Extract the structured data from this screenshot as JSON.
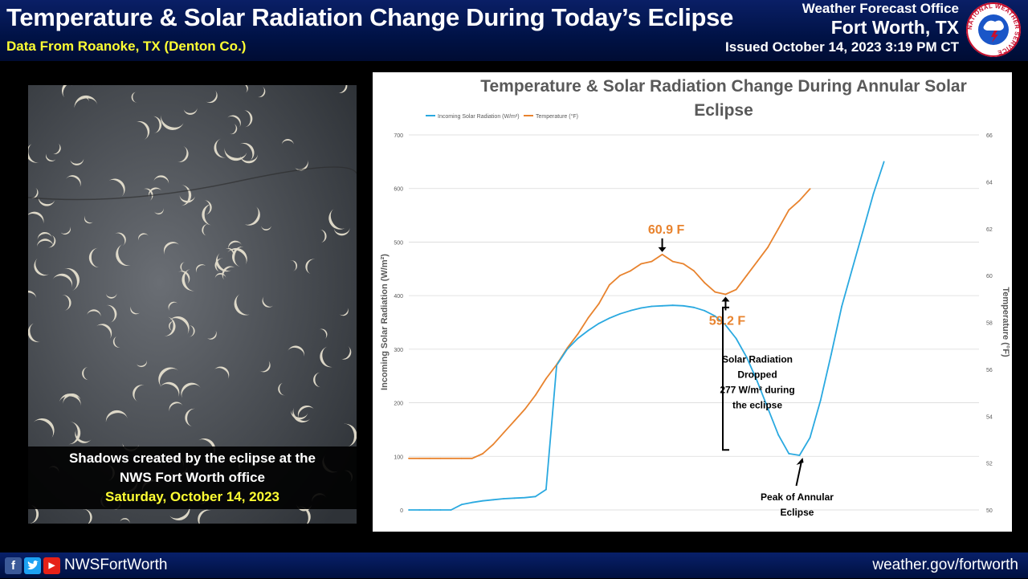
{
  "header": {
    "title": "Temperature & Solar Radiation Change During Today’s Eclipse",
    "subtitle": "Data From Roanoke, TX (Denton Co.)",
    "office_name": "Weather Forecast Office",
    "office_city": "Fort Worth, TX",
    "issued": "Issued October 14, 2023 3:19 PM CT",
    "logo_text": "NATIONAL WEATHER SERVICE"
  },
  "photo": {
    "caption_line1": "Shadows created by the eclipse at the",
    "caption_line2": "NWS Fort Worth office",
    "caption_date": "Saturday, October 14, 2023"
  },
  "footer": {
    "handle": "NWSFortWorth",
    "website": "weather.gov/fortworth"
  },
  "colors": {
    "radiation": "#2aa9e0",
    "temperature": "#e8832e",
    "header_bg": "#001246",
    "highlight": "#ffff33"
  },
  "chart_data": {
    "type": "line",
    "title": "Temperature & Solar Radiation Change During Annular Solar Eclipse",
    "ylabel": "Incoming Solar Radiation (W/m²)",
    "y2label": "Temperature (°F)",
    "ylim": [
      0,
      700
    ],
    "y2lim": [
      50,
      66
    ],
    "yticks": [
      0,
      100,
      200,
      300,
      400,
      500,
      600,
      700
    ],
    "y2ticks": [
      50,
      52,
      54,
      56,
      58,
      60,
      62,
      64,
      66
    ],
    "grid": true,
    "legend_position": "top-left",
    "x": [
      0,
      5,
      10,
      15,
      20,
      25,
      30,
      35,
      40,
      45,
      50,
      55,
      60,
      65,
      70,
      75,
      80,
      85,
      90,
      95,
      100,
      105,
      110,
      115,
      120,
      125,
      130,
      135,
      140,
      145,
      150,
      155,
      160,
      165,
      170,
      175,
      180,
      185,
      190,
      195,
      200,
      205,
      210,
      215,
      220,
      225,
      230,
      235,
      240,
      245,
      250,
      255,
      260,
      265,
      270
    ],
    "series": [
      {
        "name": "Incoming Solar Radiation (W/m²)",
        "axis": "left",
        "values": [
          0,
          0,
          0,
          0,
          0,
          10,
          14,
          17,
          19,
          21,
          22,
          23,
          25,
          38,
          270,
          300,
          320,
          335,
          348,
          358,
          366,
          372,
          377,
          380,
          381,
          382,
          381,
          378,
          372,
          362,
          345,
          320,
          285,
          240,
          190,
          140,
          105,
          102,
          135,
          205,
          290,
          380,
          450,
          520,
          590,
          650,
          null,
          null,
          null,
          null,
          null,
          null,
          null,
          null,
          null
        ]
      },
      {
        "name": "Temperature (°F)",
        "axis": "right",
        "values": [
          52.2,
          52.2,
          52.2,
          52.2,
          52.2,
          52.2,
          52.2,
          52.4,
          52.8,
          53.3,
          53.8,
          54.3,
          54.9,
          55.6,
          56.2,
          56.9,
          57.5,
          58.2,
          58.8,
          59.6,
          60.0,
          60.2,
          60.5,
          60.6,
          60.9,
          60.6,
          60.5,
          60.2,
          59.7,
          59.3,
          59.2,
          59.4,
          60.0,
          60.6,
          61.2,
          62.0,
          62.8,
          63.2,
          63.7,
          null,
          null,
          null,
          null,
          null,
          null,
          null,
          null,
          null,
          null,
          null,
          null,
          null,
          null,
          null,
          null
        ]
      }
    ],
    "annotations": [
      {
        "text": "60.9 F"
      },
      {
        "text": "59.2 F"
      },
      {
        "text": "Solar Radiation Dropped 277 W/m² during the eclipse"
      },
      {
        "text": "Peak of Annular Eclipse"
      }
    ],
    "annotation_lines": {
      "drop": [
        "Solar Radiation",
        "Dropped",
        "277 W/m² during",
        "the eclipse"
      ],
      "peak": [
        "Peak of Annular",
        "Eclipse"
      ]
    }
  }
}
